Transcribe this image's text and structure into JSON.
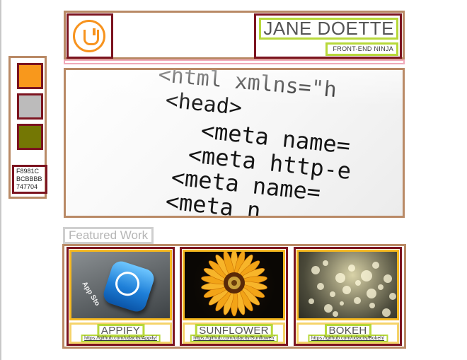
{
  "palette": {
    "swatches": [
      {
        "name": "orange",
        "color": "#F8981C"
      },
      {
        "name": "light-gray",
        "color": "#BCBBBB"
      },
      {
        "name": "olive-gray",
        "color": "#747704"
      }
    ],
    "codes": [
      "F8981C",
      "BCBBBB",
      "747704"
    ]
  },
  "header": {
    "logo_icon": "udacity-logo-icon",
    "name": "JANE DOETTE",
    "subtitle": "FRONT-END NINJA"
  },
  "hero": {
    "code_lines": [
      "<html xmlns=\"h",
      "<head>",
      "<meta name=",
      "<meta http-e",
      "<meta name=",
      "<meta n"
    ]
  },
  "featured": {
    "label": "Featured Work",
    "items": [
      {
        "title": "APPIFY",
        "link": "https://github.com/udacity/Appify/",
        "thumb_text": "App Sto"
      },
      {
        "title": "SUNFLOWER",
        "link": "https://github.com/udacity/Sunflower/"
      },
      {
        "title": "BOKEH",
        "link": "https://github.com/udacity/Bokeh/"
      }
    ]
  },
  "colors": {
    "outer_border": "#b98a66",
    "inner_border": "#7c1420",
    "text_border": "#b7d83a",
    "image_border": "#f5b820",
    "accent": "#f7931e"
  }
}
